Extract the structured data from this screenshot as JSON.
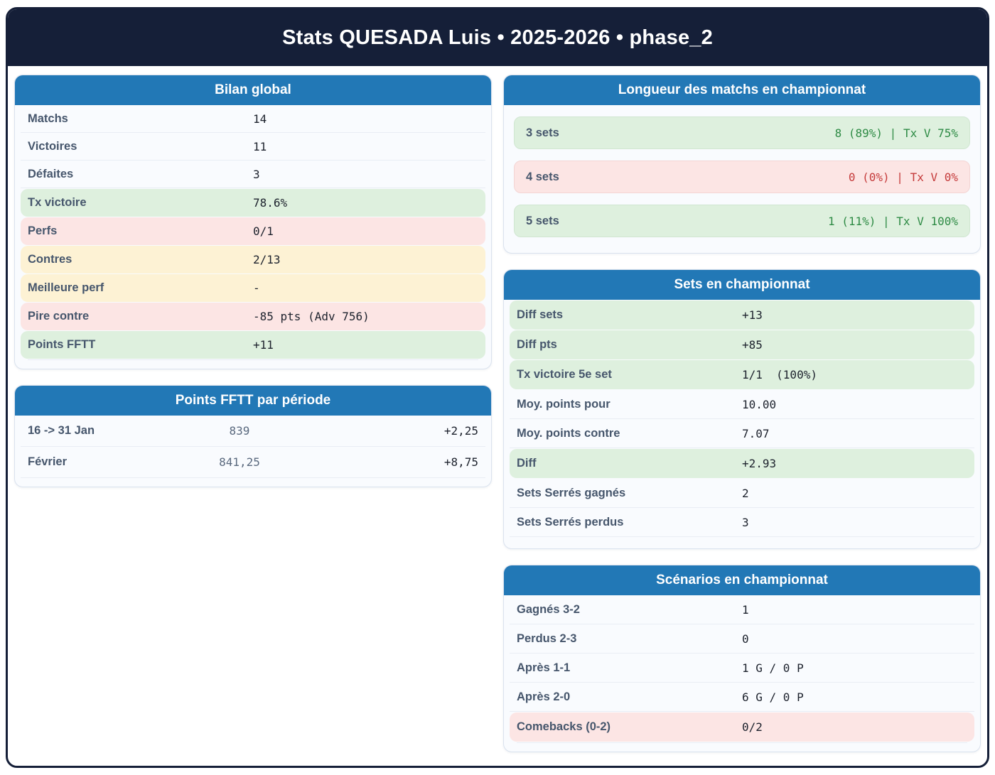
{
  "title": "Stats QUESADA Luis • 2025-2026 • phase_2",
  "colors": {
    "navy": "#151f38",
    "header_blue": "#2278b6",
    "green_bg": "#def0de",
    "pink_bg": "#fce5e4",
    "yellow_bg": "#fdf2d4",
    "green_text": "#2e8b45",
    "red_text": "#c53b3b",
    "label_slate": "#46566c"
  },
  "cards": {
    "bilan": {
      "title": "Bilan global",
      "rows": [
        {
          "label": "Matchs",
          "value": "14",
          "tint": "none"
        },
        {
          "label": "Victoires",
          "value": "11",
          "tint": "none"
        },
        {
          "label": "Défaites",
          "value": "3",
          "tint": "none"
        },
        {
          "label": "Tx victoire",
          "value": "78.6%",
          "tint": "green"
        },
        {
          "label": "Perfs",
          "value": "0/1",
          "tint": "pink"
        },
        {
          "label": "Contres",
          "value": "2/13",
          "tint": "yellow"
        },
        {
          "label": "Meilleure perf",
          "value": "-",
          "tint": "yellow"
        },
        {
          "label": "Pire contre",
          "value": "-85 pts (Adv 756)",
          "tint": "pink"
        },
        {
          "label": "Points FFTT",
          "value": "+11",
          "tint": "green"
        }
      ]
    },
    "points_periode": {
      "title": "Points FFTT par période",
      "rows": [
        {
          "label": "16 -> 31 Jan",
          "points": "839",
          "delta": "+2,25"
        },
        {
          "label": "Février",
          "points": "841,25",
          "delta": "+8,75"
        }
      ]
    },
    "longueur": {
      "title": "Longueur des matchs en championnat",
      "rows": [
        {
          "label": "3 sets",
          "value": "8 (89%) | Tx V 75%",
          "tone": "green"
        },
        {
          "label": "4 sets",
          "value": "0 (0%) | Tx V 0%",
          "tone": "red"
        },
        {
          "label": "5 sets",
          "value": "1 (11%) | Tx V 100%",
          "tone": "green"
        }
      ]
    },
    "sets": {
      "title": "Sets en championnat",
      "rows": [
        {
          "label": "Diff sets",
          "value": "+13",
          "tint": "green"
        },
        {
          "label": "Diff pts",
          "value": "+85",
          "tint": "green"
        },
        {
          "label": "Tx victoire 5e set",
          "value": "1/1  (100%)",
          "tint": "green"
        },
        {
          "label": "Moy. points pour",
          "value": "10.00",
          "tint": "none"
        },
        {
          "label": "Moy. points contre",
          "value": "7.07",
          "tint": "none"
        },
        {
          "label": "Diff",
          "value": "+2.93",
          "tint": "green"
        },
        {
          "label": "Sets Serrés gagnés",
          "value": "2",
          "tint": "none"
        },
        {
          "label": "Sets Serrés perdus",
          "value": "3",
          "tint": "none"
        }
      ]
    },
    "scenarios": {
      "title": "Scénarios en championnat",
      "rows": [
        {
          "label": "Gagnés 3-2",
          "value": "1",
          "tint": "none"
        },
        {
          "label": "Perdus 2-3",
          "value": "0",
          "tint": "none"
        },
        {
          "label": "Après 1-1",
          "value": "1 G / 0 P",
          "tint": "none"
        },
        {
          "label": "Après 2-0",
          "value": "6 G / 0 P",
          "tint": "none"
        },
        {
          "label": "Comebacks (0-2)",
          "value": "0/2",
          "tint": "pink"
        }
      ]
    }
  }
}
